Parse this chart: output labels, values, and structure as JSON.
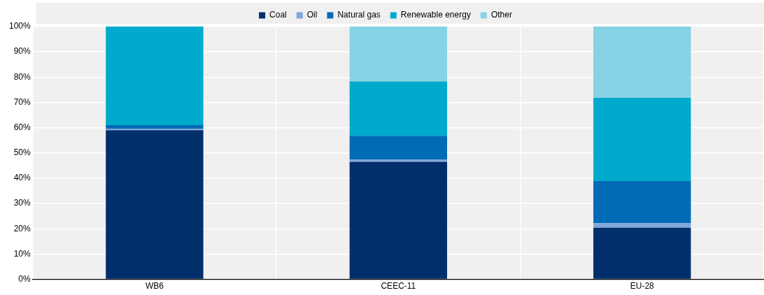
{
  "chart_data": {
    "type": "bar",
    "stacked": true,
    "categories": [
      "WB6",
      "CEEC-11",
      "EU-28"
    ],
    "series": [
      {
        "name": "Coal",
        "color": "#002f6c",
        "values": [
          59,
          46.5,
          20.4
        ]
      },
      {
        "name": "Oil",
        "color": "#7fa8d9",
        "values": [
          0.5,
          0.8,
          1.8
        ]
      },
      {
        "name": "Natural gas",
        "color": "#006bb6",
        "values": [
          1.5,
          9.5,
          16.7
        ]
      },
      {
        "name": "Renewable energy",
        "color": "#00aacc",
        "values": [
          39,
          21.5,
          32.9
        ]
      },
      {
        "name": "Other",
        "color": "#86d2e6",
        "values": [
          null,
          21.7,
          28.2
        ]
      }
    ],
    "ylim": [
      0,
      100
    ],
    "yticks": [
      {
        "value": 0,
        "label": "0%"
      },
      {
        "value": 10,
        "label": "10%"
      },
      {
        "value": 20,
        "label": "20%"
      },
      {
        "value": 30,
        "label": "30%"
      },
      {
        "value": 40,
        "label": "40%"
      },
      {
        "value": 50,
        "label": "50%"
      },
      {
        "value": 60,
        "label": "60%"
      },
      {
        "value": 70,
        "label": "70%"
      },
      {
        "value": 80,
        "label": "80%"
      },
      {
        "value": 90,
        "label": "90%"
      },
      {
        "value": 100,
        "label": "100%"
      }
    ],
    "grid": true,
    "legend": "top"
  }
}
